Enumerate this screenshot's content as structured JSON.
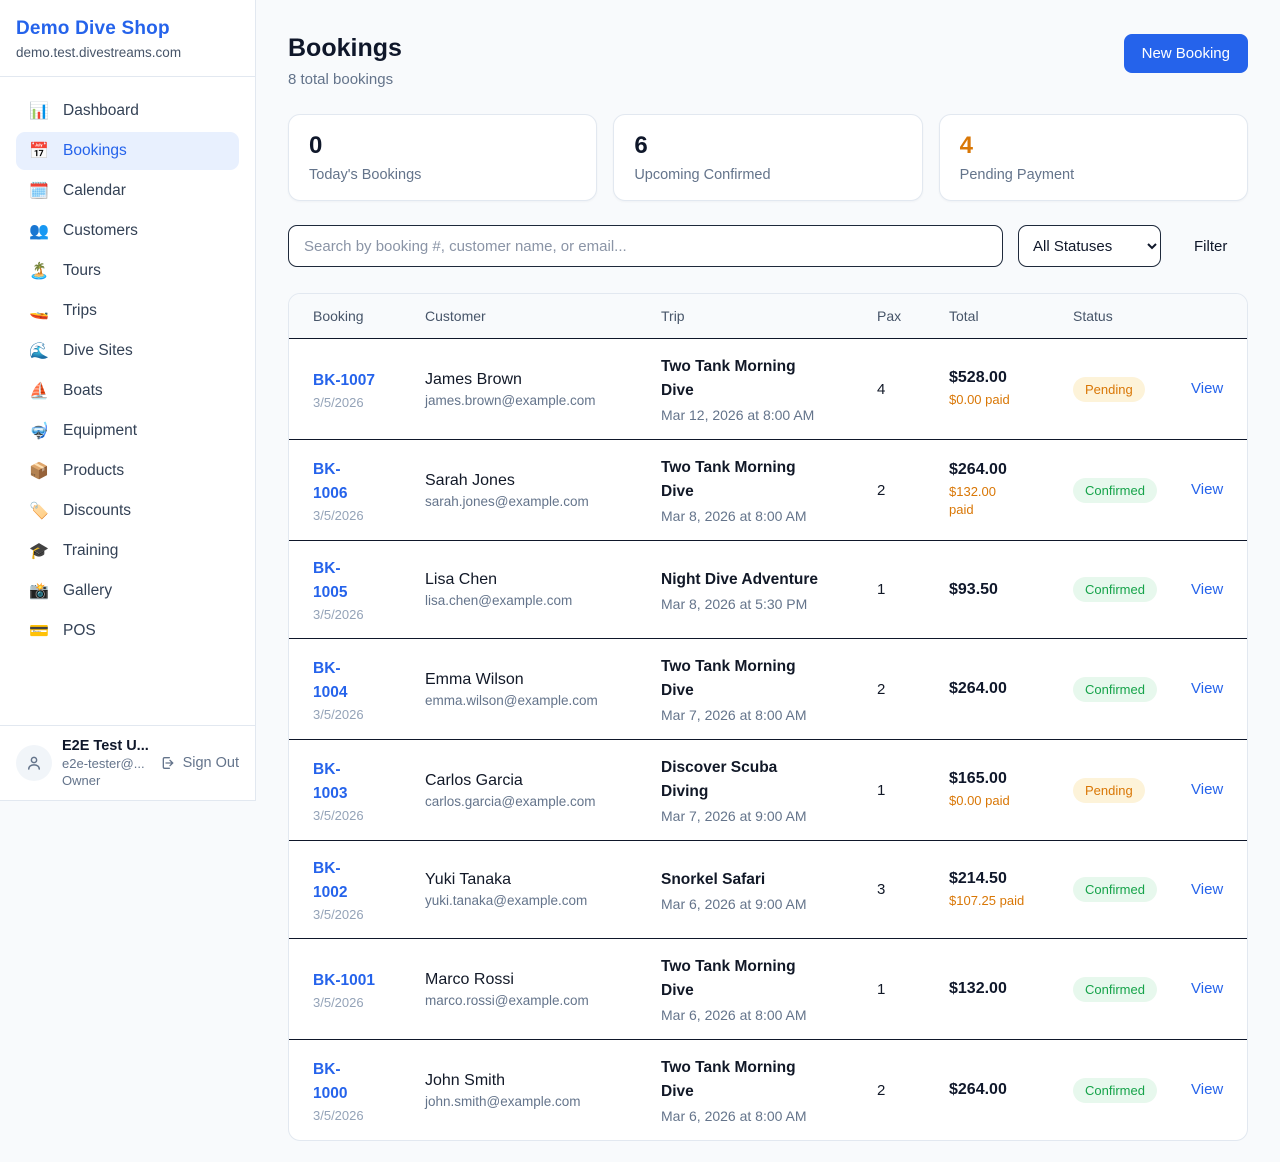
{
  "colors": {
    "accent": "#2563eb",
    "warning": "#d97706",
    "pending_bg": "#fdf3d9",
    "pending_text": "#d97706",
    "confirmed_bg": "#e7f8ed",
    "confirmed_text": "#16a34a",
    "dark_text": "#0f172a"
  },
  "sidebar": {
    "brand": {
      "name": "Demo Dive Shop",
      "domain": "demo.test.divestreams.com"
    },
    "nav": [
      {
        "label": "Dashboard",
        "icon": "📊",
        "icon_name": "bar-chart-icon",
        "active": false
      },
      {
        "label": "Bookings",
        "icon": "📅",
        "icon_name": "calendar-icon",
        "active": true
      },
      {
        "label": "Calendar",
        "icon": "🗓️",
        "icon_name": "spiral-calendar-icon",
        "active": false
      },
      {
        "label": "Customers",
        "icon": "👥",
        "icon_name": "people-icon",
        "active": false
      },
      {
        "label": "Tours",
        "icon": "🏝️",
        "icon_name": "island-icon",
        "active": false
      },
      {
        "label": "Trips",
        "icon": "🚤",
        "icon_name": "speedboat-icon",
        "active": false
      },
      {
        "label": "Dive Sites",
        "icon": "🌊",
        "icon_name": "wave-icon",
        "active": false
      },
      {
        "label": "Boats",
        "icon": "⛵",
        "icon_name": "sailboat-icon",
        "active": false
      },
      {
        "label": "Equipment",
        "icon": "🤿",
        "icon_name": "diving-mask-icon",
        "active": false
      },
      {
        "label": "Products",
        "icon": "📦",
        "icon_name": "package-icon",
        "active": false
      },
      {
        "label": "Discounts",
        "icon": "🏷️",
        "icon_name": "tag-icon",
        "active": false
      },
      {
        "label": "Training",
        "icon": "🎓",
        "icon_name": "graduation-cap-icon",
        "active": false
      },
      {
        "label": "Gallery",
        "icon": "📸",
        "icon_name": "camera-icon",
        "active": false
      },
      {
        "label": "POS",
        "icon": "💳",
        "icon_name": "credit-card-icon",
        "active": false
      }
    ],
    "user": {
      "name": "E2E Test U...",
      "email": "e2e-tester@...",
      "role": "Owner",
      "signout_label": "Sign Out"
    }
  },
  "header": {
    "title": "Bookings",
    "subtitle": "8 total bookings",
    "new_booking_label": "New Booking"
  },
  "stats": [
    {
      "value": "0",
      "label": "Today's Bookings",
      "value_color": "#0f172a"
    },
    {
      "value": "6",
      "label": "Upcoming Confirmed",
      "value_color": "#0f172a"
    },
    {
      "value": "4",
      "label": "Pending Payment",
      "value_color": "#d97706"
    }
  ],
  "filters": {
    "search_placeholder": "Search by booking #, customer name, or email...",
    "search_value": "",
    "status_selected": "All Statuses",
    "filter_label": "Filter"
  },
  "table": {
    "columns": [
      "Booking",
      "Customer",
      "Trip",
      "Pax",
      "Total",
      "Status",
      ""
    ],
    "rows": [
      {
        "booking_id": "BK-1007",
        "booking_date": "3/5/2026",
        "customer_name": "James Brown",
        "customer_email": "james.brown@example.com",
        "trip_name": "Two Tank Morning\nDive",
        "trip_datetime": "Mar 12, 2026 at 8:00 AM",
        "pax": "4",
        "total": "$528.00",
        "paid": "$0.00 paid",
        "status": "Pending",
        "action": "View"
      },
      {
        "booking_id": "BK-\n1006",
        "booking_date": "3/5/2026",
        "customer_name": "Sarah Jones",
        "customer_email": "sarah.jones@example.com",
        "trip_name": "Two Tank Morning\nDive",
        "trip_datetime": "Mar 8, 2026 at 8:00 AM",
        "pax": "2",
        "total": "$264.00",
        "paid": "$132.00\npaid",
        "status": "Confirmed",
        "action": "View"
      },
      {
        "booking_id": "BK-\n1005",
        "booking_date": "3/5/2026",
        "customer_name": "Lisa Chen",
        "customer_email": "lisa.chen@example.com",
        "trip_name": "Night Dive Adventure",
        "trip_datetime": "Mar 8, 2026 at 5:30 PM",
        "pax": "1",
        "total": "$93.50",
        "paid": null,
        "status": "Confirmed",
        "action": "View"
      },
      {
        "booking_id": "BK-\n1004",
        "booking_date": "3/5/2026",
        "customer_name": "Emma Wilson",
        "customer_email": "emma.wilson@example.com",
        "trip_name": "Two Tank Morning\nDive",
        "trip_datetime": "Mar 7, 2026 at 8:00 AM",
        "pax": "2",
        "total": "$264.00",
        "paid": null,
        "status": "Confirmed",
        "action": "View"
      },
      {
        "booking_id": "BK-\n1003",
        "booking_date": "3/5/2026",
        "customer_name": "Carlos Garcia",
        "customer_email": "carlos.garcia@example.com",
        "trip_name": "Discover Scuba\nDiving",
        "trip_datetime": "Mar 7, 2026 at 9:00 AM",
        "pax": "1",
        "total": "$165.00",
        "paid": "$0.00 paid",
        "status": "Pending",
        "action": "View"
      },
      {
        "booking_id": "BK-\n1002",
        "booking_date": "3/5/2026",
        "customer_name": "Yuki Tanaka",
        "customer_email": "yuki.tanaka@example.com",
        "trip_name": "Snorkel Safari",
        "trip_datetime": "Mar 6, 2026 at 9:00 AM",
        "pax": "3",
        "total": "$214.50",
        "paid": "$107.25 paid",
        "status": "Confirmed",
        "action": "View"
      },
      {
        "booking_id": "BK-1001",
        "booking_date": "3/5/2026",
        "customer_name": "Marco Rossi",
        "customer_email": "marco.rossi@example.com",
        "trip_name": "Two Tank Morning\nDive",
        "trip_datetime": "Mar 6, 2026 at 8:00 AM",
        "pax": "1",
        "total": "$132.00",
        "paid": null,
        "status": "Confirmed",
        "action": "View"
      },
      {
        "booking_id": "BK-\n1000",
        "booking_date": "3/5/2026",
        "customer_name": "John Smith",
        "customer_email": "john.smith@example.com",
        "trip_name": "Two Tank Morning\nDive",
        "trip_datetime": "Mar 6, 2026 at 8:00 AM",
        "pax": "2",
        "total": "$264.00",
        "paid": null,
        "status": "Confirmed",
        "action": "View"
      }
    ]
  }
}
